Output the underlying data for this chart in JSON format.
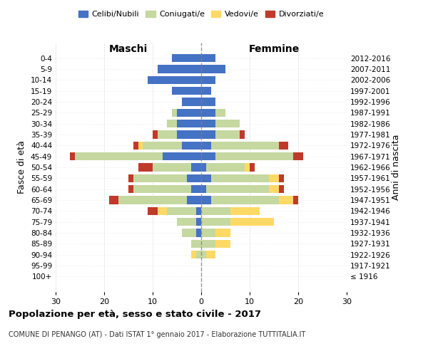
{
  "age_groups": [
    "0-4",
    "5-9",
    "10-14",
    "15-19",
    "20-24",
    "25-29",
    "30-34",
    "35-39",
    "40-44",
    "45-49",
    "50-54",
    "55-59",
    "60-64",
    "65-69",
    "70-74",
    "75-79",
    "80-84",
    "85-89",
    "90-94",
    "95-99",
    "100+"
  ],
  "birth_years": [
    "2012-2016",
    "2007-2011",
    "2002-2006",
    "1997-2001",
    "1992-1996",
    "1987-1991",
    "1982-1986",
    "1977-1981",
    "1972-1976",
    "1967-1971",
    "1962-1966",
    "1957-1961",
    "1952-1956",
    "1947-1951",
    "1942-1946",
    "1937-1941",
    "1932-1936",
    "1927-1931",
    "1922-1926",
    "1917-1921",
    "≤ 1916"
  ],
  "males": {
    "celibi": [
      6,
      9,
      11,
      6,
      4,
      5,
      5,
      5,
      4,
      8,
      2,
      3,
      2,
      3,
      1,
      1,
      1,
      0,
      0,
      0,
      0
    ],
    "coniugati": [
      0,
      0,
      0,
      0,
      0,
      1,
      2,
      4,
      8,
      18,
      8,
      11,
      12,
      14,
      6,
      4,
      3,
      2,
      1,
      0,
      0
    ],
    "vedovi": [
      0,
      0,
      0,
      0,
      0,
      0,
      0,
      0,
      1,
      0,
      0,
      0,
      0,
      0,
      2,
      0,
      0,
      0,
      1,
      0,
      0
    ],
    "divorziati": [
      0,
      0,
      0,
      0,
      0,
      0,
      0,
      1,
      1,
      1,
      3,
      1,
      1,
      2,
      2,
      0,
      0,
      0,
      0,
      0,
      0
    ]
  },
  "females": {
    "nubili": [
      3,
      5,
      3,
      2,
      3,
      3,
      3,
      3,
      2,
      3,
      1,
      2,
      1,
      2,
      0,
      0,
      0,
      0,
      0,
      0,
      0
    ],
    "coniugate": [
      0,
      0,
      0,
      0,
      0,
      2,
      5,
      5,
      14,
      16,
      8,
      12,
      13,
      14,
      6,
      6,
      3,
      3,
      1,
      0,
      0
    ],
    "vedove": [
      0,
      0,
      0,
      0,
      0,
      0,
      0,
      0,
      0,
      0,
      1,
      2,
      2,
      3,
      6,
      9,
      3,
      3,
      2,
      0,
      0
    ],
    "divorziate": [
      0,
      0,
      0,
      0,
      0,
      0,
      0,
      1,
      2,
      2,
      1,
      1,
      1,
      1,
      0,
      0,
      0,
      0,
      0,
      0,
      0
    ]
  },
  "colors": {
    "celibi": "#4472c4",
    "coniugati": "#c5d8a0",
    "vedovi": "#ffd966",
    "divorziati": "#c0392b"
  },
  "xlim": 30,
  "title": "Popolazione per età, sesso e stato civile - 2017",
  "subtitle": "COMUNE DI PENANGO (AT) - Dati ISTAT 1° gennaio 2017 - Elaborazione TUTTITALIA.IT",
  "ylabel_left": "Fasce di età",
  "ylabel_right": "Anni di nascita",
  "xlabel_left": "Maschi",
  "xlabel_right": "Femmine"
}
